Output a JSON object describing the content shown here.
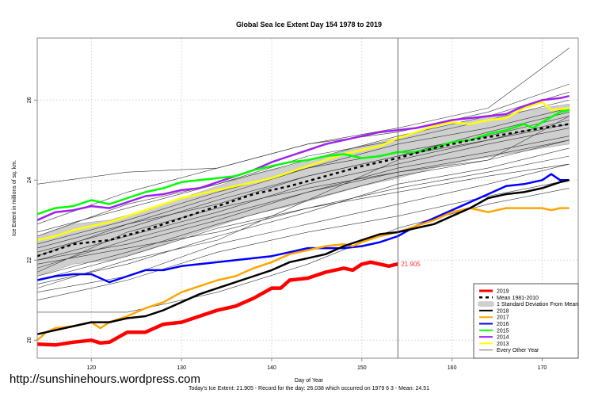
{
  "watermark": "http://sunshinehours.wordpress.com",
  "chart_data": {
    "type": "line",
    "title": "Global Sea Ice Extent Day 154 1978 to 2019",
    "xlabel": "Day of Year",
    "ylabel": "Ice Extent in millions of sq. km.",
    "subtitle": "Today's Ice Extent: 21.905  - Record for the day: 26.038 which occurred on 1979 6 3  - Mean: 24.51",
    "xlim": [
      114,
      174
    ],
    "ylim": [
      19.55,
      27.55
    ],
    "xticks": [
      120,
      130,
      140,
      150,
      160,
      170
    ],
    "yticks": [
      20,
      22,
      24,
      26
    ],
    "grid": true,
    "current_day": 154,
    "current_value_label": "21.905",
    "legend_position": "bottom-right",
    "legend": [
      "2019",
      "Mean 1981-2010",
      "1 Standard Deviation From Mean",
      "2018",
      "2017",
      "2016",
      "2015",
      "2014",
      "2013",
      "Every Other Year"
    ],
    "std_dev": 0.5,
    "mean": {
      "name": "Mean 1981-2010",
      "color": "#000000",
      "x": [
        114,
        118,
        122,
        126,
        130,
        134,
        138,
        142,
        146,
        150,
        154,
        158,
        162,
        166,
        170,
        173
      ],
      "y": [
        22.1,
        22.4,
        22.5,
        22.75,
        23.05,
        23.35,
        23.65,
        23.85,
        24.1,
        24.35,
        24.55,
        24.8,
        25.0,
        25.15,
        25.3,
        25.4
      ]
    },
    "other_years": {
      "name": "Every Other Year",
      "color": "#333333",
      "x": [
        114,
        124,
        134,
        144,
        154,
        164,
        173
      ],
      "series": [
        [
          23.9,
          24.2,
          24.3,
          24.9,
          25.3,
          25.8,
          27.3
        ],
        [
          22.9,
          23.7,
          24.3,
          24.9,
          25.2,
          25.7,
          26.4
        ],
        [
          22.6,
          23.4,
          23.9,
          24.6,
          25.0,
          25.5,
          26.0
        ],
        [
          22.4,
          23.0,
          23.7,
          24.3,
          24.7,
          25.1,
          25.6
        ],
        [
          22.2,
          22.8,
          23.5,
          24.1,
          24.6,
          25.0,
          25.4
        ],
        [
          22.0,
          22.6,
          23.2,
          23.9,
          24.4,
          24.9,
          25.3
        ],
        [
          21.8,
          22.5,
          23.1,
          23.7,
          24.3,
          24.7,
          25.1
        ],
        [
          21.6,
          22.2,
          22.9,
          23.5,
          24.1,
          24.5,
          25.0
        ],
        [
          21.9,
          22.3,
          22.7,
          23.3,
          23.8,
          24.2,
          24.6
        ],
        [
          21.4,
          21.9,
          22.6,
          23.2,
          23.9,
          24.3,
          24.8
        ],
        [
          21.7,
          22.7,
          23.3,
          23.8,
          24.2,
          24.5,
          25.6
        ],
        [
          21.2,
          21.6,
          22.4,
          22.9,
          23.4,
          23.9,
          24.4
        ],
        [
          21.0,
          21.5,
          22.2,
          22.7,
          23.1,
          23.6,
          24.0
        ],
        [
          20.7,
          20.7,
          21.2,
          21.9,
          22.8,
          23.4,
          23.8
        ],
        [
          21.3,
          22.0,
          22.5,
          23.5,
          24.5,
          25.0,
          25.5
        ],
        [
          22.3,
          22.9,
          23.6,
          24.3,
          24.9,
          25.3,
          25.8
        ],
        [
          22.7,
          23.3,
          23.9,
          24.5,
          25.1,
          25.6,
          26.2
        ],
        [
          21.5,
          22.1,
          22.8,
          23.3,
          23.7,
          24.1,
          24.4
        ],
        [
          22.1,
          22.9,
          23.4,
          24.1,
          24.6,
          25.2,
          25.7
        ],
        [
          22.0,
          22.4,
          23.0,
          23.7,
          24.2,
          24.6,
          25.0
        ]
      ]
    },
    "series": [
      {
        "name": "2013",
        "color": "#ffff00",
        "x": [
          114,
          116,
          118,
          120,
          122,
          124,
          126,
          128,
          130,
          132,
          134,
          136,
          138,
          140,
          142,
          144,
          146,
          148,
          150,
          152,
          154,
          156,
          158,
          160,
          162,
          164,
          166,
          168,
          170,
          171,
          173
        ],
        "y": [
          22.5,
          22.6,
          22.75,
          22.85,
          22.95,
          23.1,
          23.25,
          23.4,
          23.55,
          23.65,
          23.75,
          23.85,
          23.95,
          24.05,
          24.2,
          24.35,
          24.5,
          24.65,
          24.75,
          24.85,
          25.05,
          25.2,
          25.35,
          25.45,
          25.4,
          25.5,
          25.55,
          25.8,
          25.95,
          25.75,
          25.8
        ]
      },
      {
        "name": "2014",
        "color": "#a020f0",
        "x": [
          114,
          116,
          118,
          120,
          122,
          124,
          126,
          128,
          130,
          132,
          134,
          136,
          138,
          140,
          142,
          144,
          146,
          148,
          150,
          152,
          154,
          156,
          158,
          160,
          162,
          164,
          166,
          168,
          170,
          172,
          173
        ],
        "y": [
          23.0,
          23.2,
          23.25,
          23.35,
          23.3,
          23.45,
          23.6,
          23.65,
          23.75,
          23.8,
          23.95,
          24.1,
          24.25,
          24.45,
          24.6,
          24.75,
          24.9,
          25.0,
          25.1,
          25.2,
          25.25,
          25.3,
          25.4,
          25.5,
          25.55,
          25.6,
          25.65,
          25.85,
          26.0,
          26.05,
          26.1
        ]
      },
      {
        "name": "2015",
        "color": "#00ff00",
        "x": [
          114,
          116,
          118,
          120,
          122,
          124,
          126,
          128,
          130,
          132,
          134,
          136,
          138,
          140,
          142,
          144,
          146,
          148,
          150,
          152,
          154,
          156,
          158,
          160,
          162,
          164,
          166,
          168,
          169,
          170,
          172,
          173
        ],
        "y": [
          23.15,
          23.3,
          23.35,
          23.5,
          23.4,
          23.55,
          23.7,
          23.8,
          23.95,
          24.0,
          24.05,
          24.1,
          24.25,
          24.35,
          24.45,
          24.5,
          24.6,
          24.65,
          24.55,
          24.6,
          24.7,
          24.7,
          24.8,
          24.95,
          25.0,
          25.15,
          25.25,
          25.4,
          25.3,
          25.45,
          25.7,
          25.75
        ]
      },
      {
        "name": "2016",
        "color": "#0000ff",
        "x": [
          114,
          116,
          118,
          120,
          122,
          124,
          126,
          128,
          130,
          132,
          134,
          136,
          138,
          140,
          142,
          144,
          146,
          148,
          150,
          152,
          154,
          156,
          158,
          160,
          162,
          164,
          166,
          168,
          170,
          171,
          172,
          173
        ],
        "y": [
          21.5,
          21.6,
          21.65,
          21.65,
          21.45,
          21.6,
          21.75,
          21.75,
          21.85,
          21.9,
          21.95,
          22.0,
          22.05,
          22.1,
          22.2,
          22.3,
          22.3,
          22.3,
          22.35,
          22.45,
          22.6,
          22.85,
          23.05,
          23.25,
          23.45,
          23.65,
          23.85,
          23.9,
          24.0,
          24.15,
          24.0,
          24.0
        ]
      },
      {
        "name": "2017",
        "color": "#ffa500",
        "x": [
          114,
          115,
          116,
          118,
          120,
          121,
          122,
          124,
          126,
          128,
          130,
          132,
          134,
          136,
          138,
          140,
          142,
          144,
          146,
          148,
          149,
          150,
          152,
          154,
          156,
          158,
          160,
          162,
          164,
          166,
          168,
          170,
          171,
          172,
          173
        ],
        "y": [
          20.0,
          20.2,
          20.3,
          20.35,
          20.45,
          20.3,
          20.45,
          20.6,
          20.8,
          20.95,
          21.2,
          21.35,
          21.5,
          21.6,
          21.8,
          21.95,
          22.15,
          22.25,
          22.35,
          22.4,
          22.35,
          22.45,
          22.6,
          22.7,
          22.85,
          23.0,
          23.2,
          23.3,
          23.2,
          23.3,
          23.3,
          23.3,
          23.25,
          23.3,
          23.3
        ]
      },
      {
        "name": "2018",
        "color": "#000000",
        "x": [
          114,
          116,
          118,
          120,
          122,
          124,
          126,
          128,
          130,
          132,
          134,
          136,
          138,
          140,
          142,
          144,
          146,
          148,
          150,
          152,
          154,
          156,
          158,
          160,
          162,
          164,
          166,
          168,
          170,
          172,
          173
        ],
        "y": [
          20.15,
          20.25,
          20.35,
          20.45,
          20.45,
          20.55,
          20.6,
          20.75,
          20.95,
          21.15,
          21.3,
          21.45,
          21.6,
          21.75,
          21.95,
          22.05,
          22.15,
          22.35,
          22.5,
          22.65,
          22.7,
          22.8,
          22.9,
          23.1,
          23.3,
          23.55,
          23.65,
          23.7,
          23.8,
          23.95,
          24.0
        ]
      },
      {
        "name": "2019",
        "color": "#ff0000",
        "x": [
          114,
          116,
          118,
          120,
          121,
          122,
          124,
          126,
          128,
          130,
          132,
          134,
          136,
          138,
          140,
          141,
          142,
          144,
          146,
          148,
          149,
          150,
          151,
          152,
          153,
          154
        ],
        "y": [
          19.9,
          19.88,
          19.95,
          20.0,
          19.93,
          19.95,
          20.2,
          20.2,
          20.4,
          20.45,
          20.6,
          20.75,
          20.85,
          21.05,
          21.3,
          21.3,
          21.5,
          21.55,
          21.7,
          21.8,
          21.75,
          21.9,
          21.95,
          21.9,
          21.85,
          21.905
        ]
      }
    ]
  }
}
